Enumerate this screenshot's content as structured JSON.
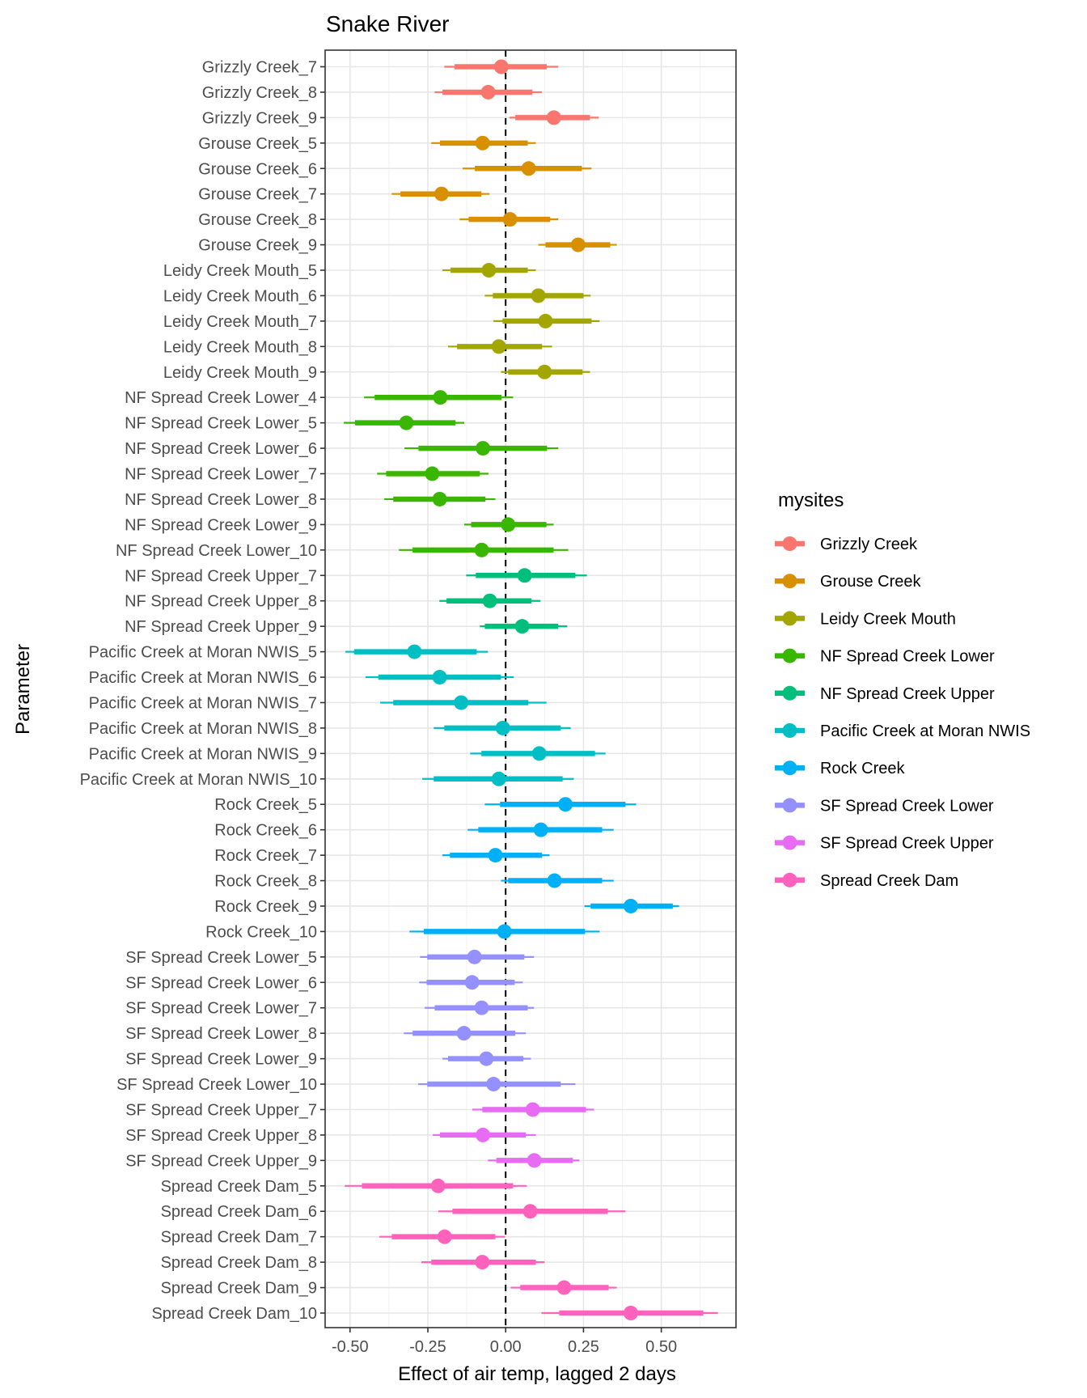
{
  "chart_data": {
    "type": "pointrange",
    "title": "Snake River",
    "xlabel": "Effect of air temp, lagged 2 days",
    "ylabel": "Parameter",
    "xlim": [
      -0.58,
      0.74
    ],
    "xticks": [
      -0.5,
      -0.25,
      0.0,
      0.25,
      0.5
    ],
    "xtick_labels": [
      "-0.50",
      "-0.25",
      "0.00",
      "0.25",
      "0.50"
    ],
    "reference_line": {
      "x": 0,
      "style": "dashed",
      "color": "#000000"
    },
    "grid": true,
    "legend": {
      "title": "mysites",
      "position": "right",
      "entries": [
        {
          "name": "Grizzly Creek",
          "color": "#F8766D"
        },
        {
          "name": "Grouse Creek",
          "color": "#D89000"
        },
        {
          "name": "Leidy Creek Mouth",
          "color": "#A3A500"
        },
        {
          "name": "NF Spread Creek Lower",
          "color": "#39B600"
        },
        {
          "name": "NF Spread Creek Upper",
          "color": "#00BF7D"
        },
        {
          "name": "Pacific Creek at Moran NWIS",
          "color": "#00BFC4"
        },
        {
          "name": "Rock Creek",
          "color": "#00B0F6"
        },
        {
          "name": "SF Spread Creek Lower",
          "color": "#9590FF"
        },
        {
          "name": "SF Spread Creek Upper",
          "color": "#E76BF3"
        },
        {
          "name": "Spread Creek Dam",
          "color": "#FF62BC"
        }
      ]
    },
    "value_fields": [
      "outer_low",
      "inner_low",
      "estimate",
      "inner_high",
      "outer_high"
    ],
    "rows": [
      {
        "label": "Grizzly Creek_7",
        "site": "Grizzly Creek",
        "values": [
          -0.197,
          -0.164,
          -0.014,
          0.132,
          0.169
        ]
      },
      {
        "label": "Grizzly Creek_8",
        "site": "Grizzly Creek",
        "values": [
          -0.228,
          -0.203,
          -0.056,
          0.086,
          0.116
        ]
      },
      {
        "label": "Grizzly Creek_9",
        "site": "Grizzly Creek",
        "values": [
          0.012,
          0.031,
          0.155,
          0.271,
          0.299
        ]
      },
      {
        "label": "Grouse Creek_5",
        "site": "Grouse Creek",
        "values": [
          -0.239,
          -0.211,
          -0.074,
          0.071,
          0.097
        ]
      },
      {
        "label": "Grouse Creek_6",
        "site": "Grouse Creek",
        "values": [
          -0.138,
          -0.099,
          0.074,
          0.245,
          0.276
        ]
      },
      {
        "label": "Grouse Creek_7",
        "site": "Grouse Creek",
        "values": [
          -0.366,
          -0.338,
          -0.206,
          -0.078,
          -0.052
        ]
      },
      {
        "label": "Grouse Creek_8",
        "site": "Grouse Creek",
        "values": [
          -0.148,
          -0.119,
          0.014,
          0.143,
          0.169
        ]
      },
      {
        "label": "Grouse Creek_9",
        "site": "Grouse Creek",
        "values": [
          0.105,
          0.128,
          0.233,
          0.336,
          0.357
        ]
      },
      {
        "label": "Leidy Creek Mouth_5",
        "site": "Leidy Creek Mouth",
        "values": [
          -0.203,
          -0.177,
          -0.054,
          0.071,
          0.097
        ]
      },
      {
        "label": "Leidy Creek Mouth_6",
        "site": "Leidy Creek Mouth",
        "values": [
          -0.067,
          -0.041,
          0.105,
          0.25,
          0.273
        ]
      },
      {
        "label": "Leidy Creek Mouth_7",
        "site": "Leidy Creek Mouth",
        "values": [
          -0.039,
          -0.01,
          0.128,
          0.276,
          0.302
        ]
      },
      {
        "label": "Leidy Creek Mouth_8",
        "site": "Leidy Creek Mouth",
        "values": [
          -0.185,
          -0.156,
          -0.022,
          0.117,
          0.149
        ]
      },
      {
        "label": "Leidy Creek Mouth_9",
        "site": "Leidy Creek Mouth",
        "values": [
          -0.015,
          0.008,
          0.125,
          0.247,
          0.271
        ]
      },
      {
        "label": "NF Spread Creek Lower_4",
        "site": "NF Spread Creek Lower",
        "values": [
          -0.455,
          -0.421,
          -0.21,
          -0.013,
          0.024
        ]
      },
      {
        "label": "NF Spread Creek Lower_5",
        "site": "NF Spread Creek Lower",
        "values": [
          -0.52,
          -0.484,
          -0.319,
          -0.161,
          -0.133
        ]
      },
      {
        "label": "NF Spread Creek Lower_6",
        "site": "NF Spread Creek Lower",
        "values": [
          -0.325,
          -0.28,
          -0.073,
          0.133,
          0.169
        ]
      },
      {
        "label": "NF Spread Creek Lower_7",
        "site": "NF Spread Creek Lower",
        "values": [
          -0.413,
          -0.384,
          -0.236,
          -0.083,
          -0.055
        ]
      },
      {
        "label": "NF Spread Creek Lower_8",
        "site": "NF Spread Creek Lower",
        "values": [
          -0.39,
          -0.361,
          -0.212,
          -0.065,
          -0.033
        ]
      },
      {
        "label": "NF Spread Creek Lower_9",
        "site": "NF Spread Creek Lower",
        "values": [
          -0.133,
          -0.111,
          0.008,
          0.131,
          0.154
        ]
      },
      {
        "label": "NF Spread Creek Lower_10",
        "site": "NF Spread Creek Lower",
        "values": [
          -0.343,
          -0.299,
          -0.077,
          0.154,
          0.201
        ]
      },
      {
        "label": "NF Spread Creek Upper_7",
        "site": "NF Spread Creek Upper",
        "values": [
          -0.127,
          -0.096,
          0.061,
          0.224,
          0.261
        ]
      },
      {
        "label": "NF Spread Creek Upper_8",
        "site": "NF Spread Creek Upper",
        "values": [
          -0.213,
          -0.19,
          -0.051,
          0.083,
          0.112
        ]
      },
      {
        "label": "NF Spread Creek Upper_9",
        "site": "NF Spread Creek Upper",
        "values": [
          -0.083,
          -0.067,
          0.053,
          0.169,
          0.198
        ]
      },
      {
        "label": "Pacific Creek at Moran NWIS_5",
        "site": "Pacific Creek at Moran NWIS",
        "values": [
          -0.515,
          -0.487,
          -0.293,
          -0.093,
          -0.057
        ]
      },
      {
        "label": "Pacific Creek at Moran NWIS_6",
        "site": "Pacific Creek at Moran NWIS",
        "values": [
          -0.45,
          -0.409,
          -0.212,
          -0.015,
          0.026
        ]
      },
      {
        "label": "Pacific Creek at Moran NWIS_7",
        "site": "Pacific Creek at Moran NWIS",
        "values": [
          -0.403,
          -0.361,
          -0.143,
          0.073,
          0.131
        ]
      },
      {
        "label": "Pacific Creek at Moran NWIS_8",
        "site": "Pacific Creek at Moran NWIS",
        "values": [
          -0.231,
          -0.197,
          -0.009,
          0.177,
          0.209
        ]
      },
      {
        "label": "Pacific Creek at Moran NWIS_9",
        "site": "Pacific Creek at Moran NWIS",
        "values": [
          -0.114,
          -0.078,
          0.108,
          0.287,
          0.321
        ]
      },
      {
        "label": "Pacific Creek at Moran NWIS_10",
        "site": "Pacific Creek at Moran NWIS",
        "values": [
          -0.268,
          -0.231,
          -0.022,
          0.183,
          0.219
        ]
      },
      {
        "label": "Rock Creek_5",
        "site": "Rock Creek",
        "values": [
          -0.067,
          -0.018,
          0.192,
          0.385,
          0.419
        ]
      },
      {
        "label": "Rock Creek_6",
        "site": "Rock Creek",
        "values": [
          -0.122,
          -0.088,
          0.113,
          0.31,
          0.347
        ]
      },
      {
        "label": "Rock Creek_7",
        "site": "Rock Creek",
        "values": [
          -0.203,
          -0.179,
          -0.033,
          0.117,
          0.141
        ]
      },
      {
        "label": "Rock Creek_8",
        "site": "Rock Creek",
        "values": [
          -0.015,
          0.008,
          0.157,
          0.31,
          0.347
        ]
      },
      {
        "label": "Rock Creek_9",
        "site": "Rock Creek",
        "values": [
          0.253,
          0.273,
          0.402,
          0.537,
          0.557
        ]
      },
      {
        "label": "Rock Creek_10",
        "site": "Rock Creek",
        "values": [
          -0.309,
          -0.263,
          -0.004,
          0.255,
          0.302
        ]
      },
      {
        "label": "SF Spread Creek Lower_5",
        "site": "SF Spread Creek Lower",
        "values": [
          -0.275,
          -0.252,
          -0.1,
          0.06,
          0.091
        ]
      },
      {
        "label": "SF Spread Creek Lower_6",
        "site": "SF Spread Creek Lower",
        "values": [
          -0.278,
          -0.254,
          -0.108,
          0.029,
          0.055
        ]
      },
      {
        "label": "SF Spread Creek Lower_7",
        "site": "SF Spread Creek Lower",
        "values": [
          -0.26,
          -0.228,
          -0.077,
          0.071,
          0.091
        ]
      },
      {
        "label": "SF Spread Creek Lower_8",
        "site": "SF Spread Creek Lower",
        "values": [
          -0.327,
          -0.299,
          -0.134,
          0.031,
          0.065
        ]
      },
      {
        "label": "SF Spread Creek Lower_9",
        "site": "SF Spread Creek Lower",
        "values": [
          -0.203,
          -0.185,
          -0.062,
          0.057,
          0.081
        ]
      },
      {
        "label": "SF Spread Creek Lower_10",
        "site": "SF Spread Creek Lower",
        "values": [
          -0.281,
          -0.252,
          -0.039,
          0.177,
          0.224
        ]
      },
      {
        "label": "SF Spread Creek Upper_7",
        "site": "SF Spread Creek Upper",
        "values": [
          -0.107,
          -0.075,
          0.087,
          0.258,
          0.284
        ]
      },
      {
        "label": "SF Spread Creek Upper_8",
        "site": "SF Spread Creek Upper",
        "values": [
          -0.234,
          -0.211,
          -0.073,
          0.065,
          0.097
        ]
      },
      {
        "label": "SF Spread Creek Upper_9",
        "site": "SF Spread Creek Upper",
        "values": [
          -0.057,
          -0.03,
          0.092,
          0.216,
          0.237
        ]
      },
      {
        "label": "Spread Creek Dam_5",
        "site": "Spread Creek Dam",
        "values": [
          -0.517,
          -0.462,
          -0.217,
          0.024,
          0.068
        ]
      },
      {
        "label": "Spread Creek Dam_6",
        "site": "Spread Creek Dam",
        "values": [
          -0.216,
          -0.171,
          0.079,
          0.328,
          0.385
        ]
      },
      {
        "label": "Spread Creek Dam_7",
        "site": "Spread Creek Dam",
        "values": [
          -0.406,
          -0.366,
          -0.196,
          -0.033,
          -0.002
        ]
      },
      {
        "label": "Spread Creek Dam_8",
        "site": "Spread Creek Dam",
        "values": [
          -0.271,
          -0.239,
          -0.075,
          0.097,
          0.125
        ]
      },
      {
        "label": "Spread Creek Dam_9",
        "site": "Spread Creek Dam",
        "values": [
          0.016,
          0.047,
          0.188,
          0.331,
          0.357
        ]
      },
      {
        "label": "Spread Creek Dam_10",
        "site": "Spread Creek Dam",
        "values": [
          0.115,
          0.172,
          0.402,
          0.635,
          0.682
        ]
      }
    ]
  }
}
